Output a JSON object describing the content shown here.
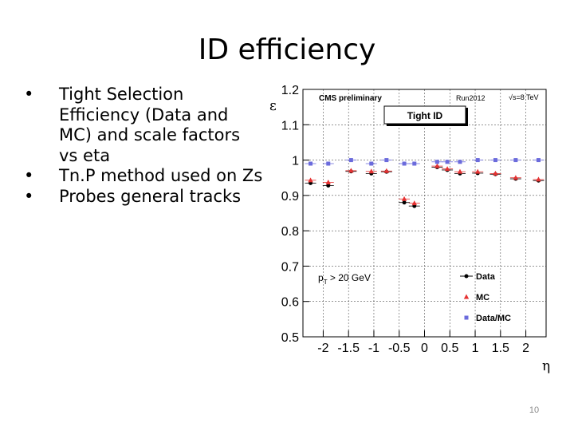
{
  "slide": {
    "title": "ID efficiency",
    "bullets": [
      "Tight Selection Efficiency (Data and MC) and scale factors vs eta",
      "Tn.P method used on Zs",
      "Probes general tracks"
    ],
    "bullet_glyph": "•",
    "page_number": "10"
  },
  "chart_data": {
    "type": "scatter",
    "header_left": "CMS preliminary",
    "header_run": "Run2012",
    "header_energy": "√s=8 TeV",
    "box_label": "Tight ID",
    "cut_label": "p",
    "cut_sub": "T",
    "cut_rest": " > 20 GeV",
    "xlabel": "η",
    "ylabel": "ε",
    "xlim": [
      -2.4,
      2.4
    ],
    "ylim": [
      0.5,
      1.2
    ],
    "xticks": [
      -2,
      -1.5,
      -1,
      -0.5,
      0,
      0.5,
      1,
      1.5,
      2
    ],
    "xtick_labels": [
      "-2",
      "-1.5",
      "-1",
      "-0.5",
      "0",
      "0.5",
      "1",
      "1.5",
      "2"
    ],
    "yticks": [
      0.5,
      0.6,
      0.7,
      0.8,
      0.9,
      1.0,
      1.1,
      1.2
    ],
    "ytick_labels": [
      "0.5",
      "0.6",
      "0.7",
      "0.8",
      "0.9",
      "1",
      "1.1",
      "1.2"
    ],
    "grid": true,
    "legend_position": "bottom-right",
    "x": [
      -2.25,
      -1.9,
      -1.45,
      -1.05,
      -0.75,
      -0.4,
      -0.2,
      0.25,
      0.45,
      0.7,
      1.05,
      1.4,
      1.8,
      2.25
    ],
    "series": [
      {
        "name": "Data",
        "color": "#000000",
        "marker": "circle",
        "values": [
          0.935,
          0.928,
          0.968,
          0.962,
          0.967,
          0.88,
          0.87,
          0.98,
          0.972,
          0.962,
          0.963,
          0.96,
          0.947,
          0.942
        ]
      },
      {
        "name": "MC",
        "color": "#e63232",
        "marker": "triangle",
        "values": [
          0.943,
          0.937,
          0.97,
          0.968,
          0.969,
          0.89,
          0.878,
          0.983,
          0.975,
          0.967,
          0.967,
          0.962,
          0.95,
          0.945
        ]
      },
      {
        "name": "Data/MC",
        "color": "#6b6bdc",
        "marker": "square",
        "values": [
          0.99,
          0.99,
          1.0,
          0.99,
          1.0,
          0.99,
          0.99,
          0.995,
          0.995,
          0.995,
          1.0,
          1.0,
          1.0,
          1.0
        ]
      }
    ]
  }
}
